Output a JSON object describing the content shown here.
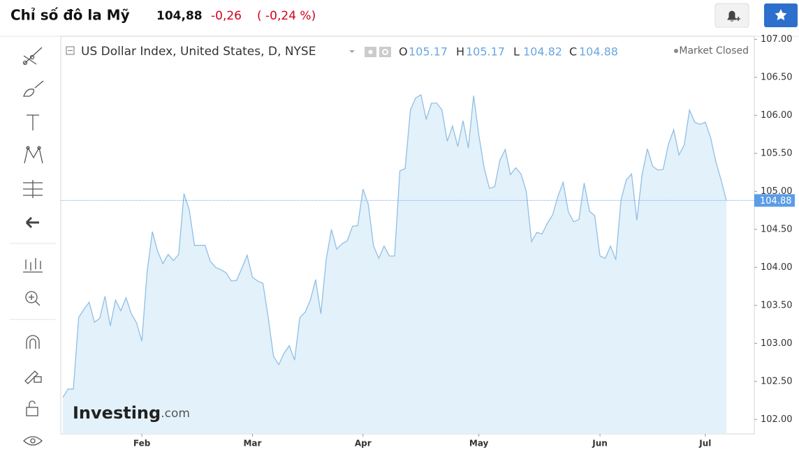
{
  "header": {
    "title": "Chỉ số đô la Mỹ",
    "price": "104,88",
    "change": "-0,26",
    "change_percent": "( -0,24 %)"
  },
  "chart_data": {
    "type": "area",
    "title": "US Dollar Index, United States, D, NYSE",
    "ohlc": [
      {
        "label": "O",
        "value": 105.17
      },
      {
        "label": "H",
        "value": 105.17
      },
      {
        "label": "L",
        "value": 104.82
      },
      {
        "label": "C",
        "value": 104.88
      }
    ],
    "status": "Market Closed",
    "watermark": [
      "Investing",
      ".com"
    ],
    "categories": [
      null,
      null,
      null,
      null,
      null,
      null,
      null,
      null,
      null,
      null,
      null,
      null,
      null,
      null,
      null,
      "Feb",
      null,
      null,
      null,
      null,
      null,
      null,
      null,
      null,
      null,
      null,
      null,
      null,
      null,
      null,
      null,
      null,
      null,
      null,
      null,
      null,
      "Mar",
      null,
      null,
      null,
      null,
      null,
      null,
      null,
      null,
      null,
      null,
      null,
      null,
      null,
      null,
      null,
      null,
      null,
      null,
      null,
      null,
      "Apr",
      null,
      null,
      null,
      null,
      null,
      null,
      null,
      null,
      null,
      null,
      null,
      null,
      null,
      null,
      null,
      null,
      null,
      null,
      null,
      null,
      null,
      "May",
      null,
      null,
      null,
      null,
      null,
      null,
      null,
      null,
      null,
      null,
      null,
      null,
      null,
      null,
      null,
      null,
      null,
      null,
      null,
      null,
      null,
      null,
      "Jun",
      null,
      null,
      null,
      null,
      null,
      null,
      null,
      null,
      null,
      null,
      null,
      null,
      null,
      null,
      null,
      null,
      null,
      null,
      null,
      "Jul",
      null,
      null,
      null,
      null
    ],
    "values": [
      102.29,
      102.4,
      102.4,
      103.34,
      103.45,
      103.54,
      103.28,
      103.33,
      103.62,
      103.23,
      103.57,
      103.43,
      103.6,
      103.39,
      103.27,
      103.03,
      103.94,
      104.47,
      104.21,
      104.05,
      104.17,
      104.09,
      104.17,
      104.97,
      104.76,
      104.29,
      104.29,
      104.29,
      104.08,
      104.0,
      103.97,
      103.93,
      103.82,
      103.83,
      103.99,
      104.16,
      103.87,
      103.82,
      103.79,
      103.34,
      102.83,
      102.72,
      102.87,
      102.97,
      102.78,
      103.34,
      103.41,
      103.57,
      103.84,
      103.39,
      104.1,
      104.5,
      104.24,
      104.31,
      104.35,
      104.54,
      104.55,
      105.03,
      104.83,
      104.28,
      104.12,
      104.28,
      104.15,
      104.15,
      105.27,
      105.3,
      106.07,
      106.23,
      106.27,
      105.95,
      106.16,
      106.16,
      106.07,
      105.66,
      105.86,
      105.59,
      105.93,
      105.57,
      106.26,
      105.74,
      105.31,
      105.04,
      105.06,
      105.41,
      105.55,
      105.22,
      105.31,
      105.23,
      105.0,
      104.34,
      104.46,
      104.44,
      104.58,
      104.69,
      104.93,
      105.12,
      104.73,
      104.6,
      104.63,
      105.11,
      104.74,
      104.68,
      104.15,
      104.12,
      104.28,
      104.1,
      104.89,
      105.15,
      105.23,
      104.62,
      105.22,
      105.56,
      105.33,
      105.28,
      105.29,
      105.62,
      105.81,
      105.48,
      105.61,
      106.07,
      105.91,
      105.88,
      105.91,
      105.71,
      105.39,
      105.15,
      104.88
    ],
    "color": "#8fbfe6",
    "fill": "#e3f1fa",
    "ylim": [
      101.81,
      107.04
    ],
    "yticks": [
      {
        "value": 102,
        "label": "102.00"
      },
      {
        "value": 102.5,
        "label": "102.50"
      },
      {
        "value": 103,
        "label": "103.00"
      },
      {
        "value": 103.5,
        "label": "103.50"
      },
      {
        "value": 104,
        "label": "104.00"
      },
      {
        "value": 104.5,
        "label": "104.50"
      },
      {
        "value": 105,
        "label": "105.00"
      },
      {
        "value": 105.5,
        "label": "105.50"
      },
      {
        "value": 106,
        "label": "106.00"
      },
      {
        "value": 106.5,
        "label": "106.50"
      },
      {
        "value": 107,
        "label": "107.00"
      }
    ],
    "grid": false
  }
}
